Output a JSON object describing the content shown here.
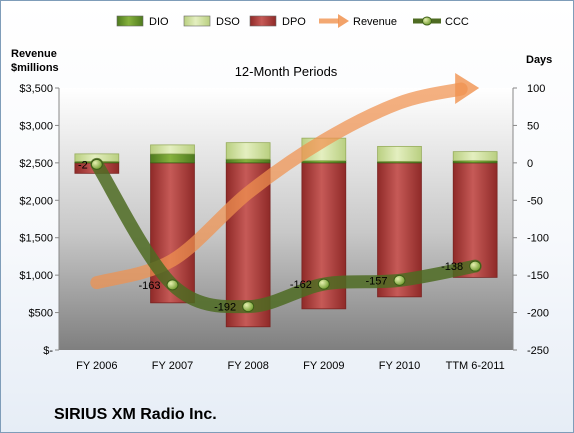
{
  "chart_data": {
    "type": "combo",
    "title": "12-Month Periods",
    "company": "SIRIUS XM Radio Inc.",
    "left_axis_title": [
      "Revenue",
      "$millions"
    ],
    "right_axis_title": "Days",
    "left_axis": {
      "min": 0,
      "max": 3500,
      "step": 500,
      "tick_labels": [
        "$-",
        "$500",
        "$1,000",
        "$1,500",
        "$2,000",
        "$2,500",
        "$3,000",
        "$3,500"
      ]
    },
    "right_axis": {
      "min": -250,
      "max": 100,
      "step": 50,
      "tick_labels": [
        "-250",
        "-200",
        "-150",
        "-100",
        "-50",
        "0",
        "50",
        "100"
      ]
    },
    "categories": [
      "FY 2006",
      "FY 2007",
      "FY 2008",
      "FY 2009",
      "FY 2010",
      "TTM 6-2011"
    ],
    "series": [
      {
        "name": "DIO",
        "kind": "stacked-bar",
        "axis": "days",
        "color": "#6e9a2c",
        "values": [
          2,
          12,
          5,
          3,
          2,
          3
        ]
      },
      {
        "name": "DSO",
        "kind": "stacked-bar",
        "axis": "days",
        "color": "#d6e6a8",
        "values": [
          10,
          12,
          22,
          30,
          20,
          12
        ]
      },
      {
        "name": "DPO",
        "kind": "stacked-bar",
        "axis": "days",
        "color": "#b8403e",
        "values": [
          -14,
          -187,
          -219,
          -195,
          -179,
          -153
        ]
      },
      {
        "name": "Revenue",
        "kind": "line",
        "axis": "revenue",
        "color": "#f0924f",
        "values": [
          900,
          1200,
          2100,
          2800,
          3300,
          3500
        ]
      },
      {
        "name": "CCC",
        "kind": "line",
        "axis": "days",
        "color": "#4e6b22",
        "values": [
          -2,
          -163,
          -192,
          -162,
          -157,
          -138
        ],
        "data_labels": [
          "-2",
          "-163",
          "-192",
          "-162",
          "-157",
          "-138"
        ]
      }
    ],
    "legend": {
      "position": "top",
      "entries": [
        {
          "name": "DIO",
          "icon": "bar"
        },
        {
          "name": "DSO",
          "icon": "bar"
        },
        {
          "name": "DPO",
          "icon": "bar"
        },
        {
          "name": "Revenue",
          "icon": "arrow"
        },
        {
          "name": "CCC",
          "icon": "line-marker"
        }
      ]
    },
    "plot_area_background": "gradient-gray",
    "grid": false
  }
}
